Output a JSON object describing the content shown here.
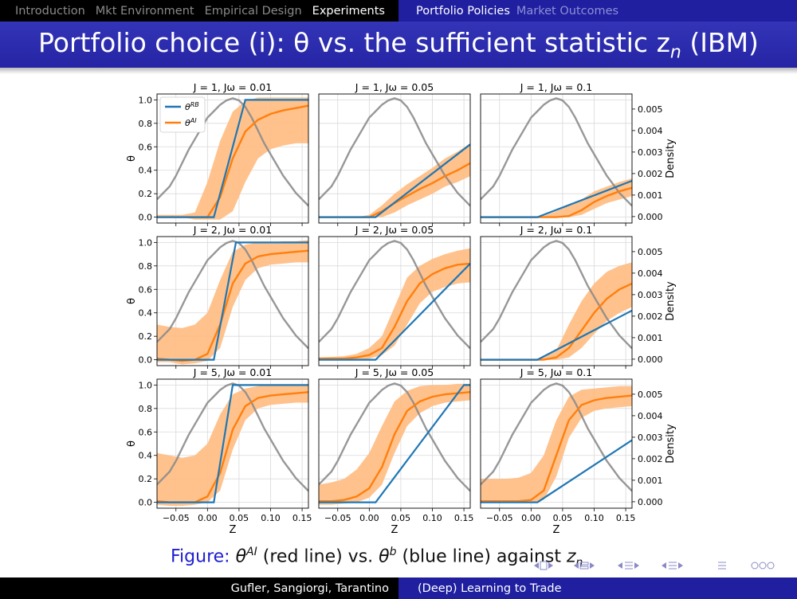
{
  "nav": {
    "left_items": [
      "Introduction",
      "Mkt Environment",
      "Empirical Design",
      "Experiments"
    ],
    "active_left": "Experiments",
    "right_items": [
      "Portfolio Policies",
      "Market Outcomes"
    ],
    "active_right": "Portfolio Policies"
  },
  "slide": {
    "title": "Portfolio choice (i): θ vs. the sufficient statistic z",
    "title_sub": "n",
    "title_tail": " (IBM)"
  },
  "caption": {
    "prefix": "Figure: ",
    "theta": "θ",
    "ai_sup": "AI",
    "mid": " (red line) vs. ",
    "b_sup": "b",
    "mid2": " (blue line) against ",
    "z": "z",
    "z_sub": "n"
  },
  "footer": {
    "authors": "Gufler, Sangiorgi, Tarantino",
    "talk_title": "(Deep) Learning to Trade"
  },
  "colors": {
    "rb": "#1f77b4",
    "ai": "#ff7f0e",
    "band": "#ffbb80",
    "density": "#8c8c8c",
    "nav_blue": "#1f1fa0"
  },
  "chart_data": {
    "type": "line",
    "grid": {
      "rows": 3,
      "cols": 3
    },
    "xlabel": "Z",
    "ylabel_left": "θ",
    "ylabel_right": "Density",
    "xlim": [
      -0.08,
      0.16
    ],
    "xticks": [
      -0.05,
      0.0,
      0.05,
      0.1,
      0.15
    ],
    "xtick_labels": [
      "−0.05",
      "0.00",
      "0.05",
      "0.10",
      "0.15"
    ],
    "ylim": [
      -0.05,
      1.05
    ],
    "yticks": [
      0.0,
      0.2,
      0.4,
      0.6,
      0.8,
      1.0
    ],
    "ytick_labels": [
      "0.0",
      "0.2",
      "0.4",
      "0.6",
      "0.8",
      "1.0"
    ],
    "y2lim": [
      -0.0003,
      0.0057
    ],
    "y2ticks": [
      0.0,
      0.001,
      0.002,
      0.003,
      0.004,
      0.005
    ],
    "y2tick_labels": [
      "0.000",
      "0.001",
      "0.002",
      "0.003",
      "0.004",
      "0.005"
    ],
    "legend": {
      "entries": [
        "θ^RB",
        "θ^AI"
      ],
      "placement": "upper-left of first panel"
    },
    "density": {
      "x": [
        -0.08,
        -0.07,
        -0.06,
        -0.05,
        -0.04,
        -0.03,
        -0.02,
        -0.01,
        0.0,
        0.01,
        0.02,
        0.03,
        0.04,
        0.05,
        0.06,
        0.07,
        0.08,
        0.09,
        0.1,
        0.11,
        0.12,
        0.13,
        0.14,
        0.15,
        0.16
      ],
      "y": [
        0.0008,
        0.0011,
        0.0014,
        0.0019,
        0.0025,
        0.0031,
        0.0036,
        0.0041,
        0.0046,
        0.0049,
        0.0052,
        0.0054,
        0.0055,
        0.0054,
        0.0051,
        0.0046,
        0.004,
        0.0034,
        0.0029,
        0.0024,
        0.0019,
        0.0015,
        0.0011,
        0.0008,
        0.0005
      ]
    },
    "panels": [
      {
        "title": "J = 1, Jω = 0.01",
        "rb": [
          [
            -0.08,
            0
          ],
          [
            0.01,
            0
          ],
          [
            0.06,
            1
          ],
          [
            0.16,
            1
          ]
        ],
        "ai": {
          "x": [
            -0.08,
            -0.04,
            -0.02,
            0.0,
            0.02,
            0.04,
            0.06,
            0.08,
            0.1,
            0.12,
            0.14,
            0.16
          ],
          "y": [
            0,
            0,
            0,
            0,
            0.17,
            0.5,
            0.73,
            0.83,
            0.88,
            0.91,
            0.93,
            0.95
          ]
        },
        "band_low": [
          0,
          0,
          -0.02,
          -0.02,
          -0.02,
          0.05,
          0.3,
          0.5,
          0.58,
          0.61,
          0.63,
          0.63
        ],
        "band_high": [
          0.02,
          0.02,
          0.04,
          0.3,
          0.65,
          0.9,
          0.99,
          1.02,
          1.02,
          1.02,
          1.02,
          1.02
        ]
      },
      {
        "title": "J = 1, Jω = 0.05",
        "rb": [
          [
            -0.08,
            0
          ],
          [
            0.01,
            0
          ],
          [
            0.16,
            0.62
          ]
        ],
        "ai": {
          "x": [
            -0.08,
            -0.04,
            -0.02,
            0.0,
            0.02,
            0.04,
            0.06,
            0.08,
            0.1,
            0.12,
            0.14,
            0.16
          ],
          "y": [
            0,
            0,
            0,
            0,
            0.05,
            0.12,
            0.18,
            0.24,
            0.29,
            0.35,
            0.4,
            0.46
          ]
        },
        "band_low": [
          0,
          0,
          0,
          0,
          0.0,
          0.04,
          0.1,
          0.15,
          0.2,
          0.26,
          0.3,
          0.35
        ],
        "band_high": [
          0,
          0,
          0,
          0.02,
          0.1,
          0.2,
          0.28,
          0.35,
          0.42,
          0.5,
          0.56,
          0.63
        ]
      },
      {
        "title": "J = 1, Jω = 0.1",
        "rb": [
          [
            -0.08,
            0
          ],
          [
            0.01,
            0
          ],
          [
            0.16,
            0.31
          ]
        ],
        "ai": {
          "x": [
            -0.08,
            -0.04,
            -0.02,
            0.0,
            0.02,
            0.04,
            0.06,
            0.08,
            0.1,
            0.12,
            0.14,
            0.16
          ],
          "y": [
            0,
            0,
            0,
            0,
            0,
            0,
            0.01,
            0.06,
            0.13,
            0.18,
            0.22,
            0.25
          ]
        },
        "band_low": [
          0,
          0,
          0,
          0,
          0,
          0,
          0,
          0.02,
          0.07,
          0.12,
          0.15,
          0.18
        ],
        "band_high": [
          0,
          0,
          0,
          0,
          0.01,
          0.05,
          0.1,
          0.15,
          0.22,
          0.26,
          0.3,
          0.33
        ]
      },
      {
        "title": "J = 2, Jω = 0.01",
        "rb": [
          [
            -0.08,
            0
          ],
          [
            0.01,
            0
          ],
          [
            0.045,
            1
          ],
          [
            0.16,
            1
          ]
        ],
        "ai": {
          "x": [
            -0.08,
            -0.06,
            -0.04,
            -0.02,
            0.0,
            0.02,
            0.04,
            0.06,
            0.08,
            0.1,
            0.12,
            0.14,
            0.16
          ],
          "y": [
            0.01,
            0.0,
            -0.01,
            0.0,
            0.05,
            0.3,
            0.65,
            0.82,
            0.88,
            0.9,
            0.91,
            0.92,
            0.93
          ]
        },
        "band_low": [
          -0.02,
          -0.02,
          -0.04,
          -0.03,
          -0.01,
          0.1,
          0.45,
          0.68,
          0.78,
          0.81,
          0.82,
          0.83,
          0.83
        ],
        "band_high": [
          0.3,
          0.28,
          0.27,
          0.3,
          0.4,
          0.68,
          0.92,
          0.98,
          1.0,
          1.0,
          1.01,
          1.01,
          1.02
        ]
      },
      {
        "title": "J = 2, Jω = 0.05",
        "rb": [
          [
            -0.08,
            0
          ],
          [
            0.01,
            0
          ],
          [
            0.16,
            0.82
          ]
        ],
        "ai": {
          "x": [
            -0.08,
            -0.04,
            -0.02,
            0.0,
            0.02,
            0.04,
            0.06,
            0.08,
            0.1,
            0.12,
            0.14,
            0.16
          ],
          "y": [
            0.01,
            0.01,
            0.02,
            0.04,
            0.1,
            0.28,
            0.5,
            0.65,
            0.73,
            0.78,
            0.81,
            0.82
          ]
        },
        "band_low": [
          0,
          0,
          0,
          0.01,
          0.04,
          0.12,
          0.3,
          0.48,
          0.58,
          0.62,
          0.65,
          0.66
        ],
        "band_high": [
          0.02,
          0.03,
          0.05,
          0.1,
          0.2,
          0.45,
          0.7,
          0.8,
          0.86,
          0.9,
          0.93,
          0.95
        ]
      },
      {
        "title": "J = 2, Jω = 0.1",
        "rb": [
          [
            -0.08,
            0
          ],
          [
            0.01,
            0
          ],
          [
            0.16,
            0.42
          ]
        ],
        "ai": {
          "x": [
            -0.08,
            -0.04,
            -0.02,
            0.0,
            0.02,
            0.04,
            0.06,
            0.08,
            0.1,
            0.12,
            0.14,
            0.16
          ],
          "y": [
            0,
            0,
            0,
            0,
            0,
            0.02,
            0.1,
            0.25,
            0.4,
            0.52,
            0.6,
            0.65
          ]
        },
        "band_low": [
          0,
          0,
          0,
          0,
          0,
          0,
          0.02,
          0.1,
          0.22,
          0.33,
          0.4,
          0.45
        ],
        "band_high": [
          0,
          0,
          0,
          0,
          0.02,
          0.08,
          0.3,
          0.5,
          0.65,
          0.75,
          0.8,
          0.83
        ]
      },
      {
        "title": "J = 5, Jω = 0.01",
        "rb": [
          [
            -0.08,
            0
          ],
          [
            0.01,
            0
          ],
          [
            0.04,
            1
          ],
          [
            0.16,
            1
          ]
        ],
        "ai": {
          "x": [
            -0.08,
            -0.06,
            -0.04,
            -0.02,
            0.0,
            0.02,
            0.04,
            0.06,
            0.08,
            0.1,
            0.12,
            0.14,
            0.16
          ],
          "y": [
            0.01,
            0.0,
            0.0,
            0.0,
            0.05,
            0.25,
            0.62,
            0.82,
            0.89,
            0.91,
            0.92,
            0.93,
            0.94
          ]
        },
        "band_low": [
          -0.02,
          -0.03,
          -0.03,
          -0.02,
          0.0,
          0.1,
          0.45,
          0.7,
          0.8,
          0.83,
          0.84,
          0.85,
          0.85
        ],
        "band_high": [
          0.42,
          0.4,
          0.38,
          0.4,
          0.5,
          0.75,
          0.92,
          0.97,
          0.99,
          1.0,
          1.0,
          1.0,
          1.0
        ]
      },
      {
        "title": "J = 5, Jω = 0.05",
        "rb": [
          [
            -0.08,
            0
          ],
          [
            0.01,
            0
          ],
          [
            0.15,
            1
          ],
          [
            0.16,
            1
          ]
        ],
        "ai": {
          "x": [
            -0.08,
            -0.06,
            -0.04,
            -0.02,
            0.0,
            0.02,
            0.04,
            0.06,
            0.08,
            0.1,
            0.12,
            0.14,
            0.16
          ],
          "y": [
            0.01,
            0.01,
            0.02,
            0.05,
            0.12,
            0.3,
            0.58,
            0.78,
            0.86,
            0.9,
            0.92,
            0.93,
            0.94
          ]
        },
        "band_low": [
          -0.02,
          -0.02,
          -0.01,
          0.0,
          0.04,
          0.15,
          0.42,
          0.65,
          0.76,
          0.82,
          0.85,
          0.86,
          0.87
        ],
        "band_high": [
          0.15,
          0.17,
          0.2,
          0.28,
          0.42,
          0.65,
          0.86,
          0.95,
          0.99,
          1.0,
          1.0,
          1.01,
          1.01
        ]
      },
      {
        "title": "J = 5, Jω = 0.1",
        "rb": [
          [
            -0.08,
            0
          ],
          [
            0.01,
            0
          ],
          [
            0.16,
            0.53
          ]
        ],
        "ai": {
          "x": [
            -0.08,
            -0.06,
            -0.04,
            -0.02,
            0.0,
            0.02,
            0.04,
            0.06,
            0.08,
            0.1,
            0.12,
            0.14,
            0.16
          ],
          "y": [
            0.01,
            0.01,
            0.01,
            0.01,
            0.02,
            0.1,
            0.4,
            0.7,
            0.83,
            0.87,
            0.89,
            0.9,
            0.91
          ]
        },
        "band_low": [
          0,
          0,
          0,
          0,
          0,
          0.02,
          0.22,
          0.55,
          0.72,
          0.78,
          0.8,
          0.81,
          0.82
        ],
        "band_high": [
          0.2,
          0.2,
          0.2,
          0.21,
          0.25,
          0.4,
          0.7,
          0.9,
          0.96,
          0.97,
          0.98,
          0.99,
          0.99
        ]
      }
    ]
  }
}
